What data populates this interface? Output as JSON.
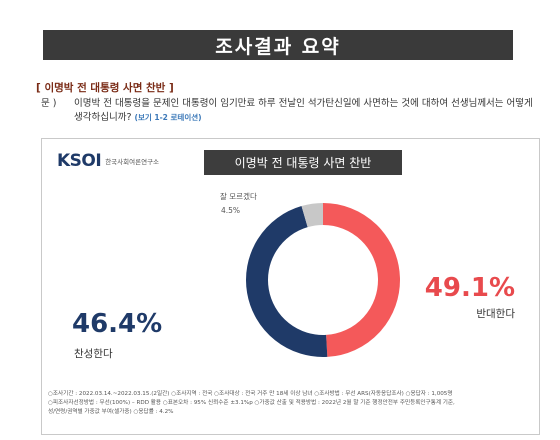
{
  "header": {
    "banner": "조사결과 요약",
    "section_title": "[ 이명박 전 대통령 사면 찬반 ]",
    "question_label": "문 )",
    "question_text": "이명박 전 대통령을 문제인 대통령이 임기만료 하루 전날인 석가탄신일에 사면하는 것에 대하여 선생님께서는 어떻게 생각하십니까?",
    "question_note": "(보기 1-2 로테이션)"
  },
  "card": {
    "logo_mark": "KSOI",
    "logo_text": "한국사회여론연구소",
    "chart_title": "이명박 전 대통령 사면 찬반"
  },
  "colors": {
    "oppose": "#f4595a",
    "support": "#1f3a68",
    "unsure": "#c8c8c8",
    "oppose_text": "#e84a4d",
    "support_text": "#1f3a68"
  },
  "chart_data": {
    "type": "pie",
    "title": "이명박 전 대통령 사면 찬반",
    "start_angle": "top, clockwise",
    "slices": [
      {
        "label": "반대한다",
        "value": 49.1,
        "display": "49.1%"
      },
      {
        "label": "찬성한다",
        "value": 46.4,
        "display": "46.4%"
      },
      {
        "label": "잘 모르겠다",
        "value": 4.5,
        "display": "4.5%"
      }
    ]
  },
  "footer": {
    "line1": "○조사기간 : 2022.03.14.~2022.03.15.(2일간)  ○조사지역 : 전국  ○조사대상 : 전국 거주 만 18세 이상 남녀  ○조사방법 : 무선 ARS(자동응답조사)  ○응답자 : 1,005명",
    "line2": "○피조사자선정방법 : 무선(100%) – RDD 활용  ○표본오차 : 95% 신뢰수준 ±3.1%p  ○가중값 산출 및 적용방법 : 2022년 2월 말 기준 행정안전부 주민등록인구통계 기준,",
    "line3": "성/연령/권역별 가중값 부여(셀가중)  ○응답률 : 4.2%"
  }
}
